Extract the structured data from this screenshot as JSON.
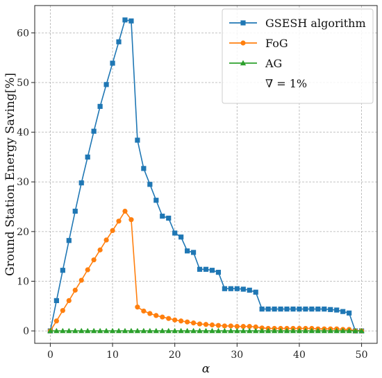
{
  "chart_data": {
    "type": "line",
    "xlabel": "α",
    "ylabel": "Ground Station Energy Saving[%]",
    "xlim": [
      -2.5,
      52.5
    ],
    "ylim": [
      -2.5,
      65.5
    ],
    "xticks": [
      0,
      10,
      20,
      30,
      40,
      50
    ],
    "yticks": [
      0,
      10,
      20,
      30,
      40,
      50,
      60
    ],
    "grid": true,
    "legend_position": "top-right",
    "legend_note": "∇ = 1%",
    "x": [
      0,
      1,
      2,
      3,
      4,
      5,
      6,
      7,
      8,
      9,
      10,
      11,
      12,
      13,
      14,
      15,
      16,
      17,
      18,
      19,
      20,
      21,
      22,
      23,
      24,
      25,
      26,
      27,
      28,
      29,
      30,
      31,
      32,
      33,
      34,
      35,
      36,
      37,
      38,
      39,
      40,
      41,
      42,
      43,
      44,
      45,
      46,
      47,
      48,
      49,
      50
    ],
    "series": [
      {
        "name": "GSESH algorithm",
        "color": "#1f77b4",
        "marker": "square",
        "values": [
          0,
          6.1,
          12.2,
          18.2,
          24.1,
          29.8,
          35.0,
          40.2,
          45.2,
          49.6,
          53.9,
          58.2,
          62.6,
          62.4,
          38.4,
          32.7,
          29.5,
          26.3,
          23.1,
          22.7,
          19.7,
          18.9,
          16.1,
          15.8,
          12.4,
          12.4,
          12.2,
          11.8,
          8.5,
          8.5,
          8.5,
          8.4,
          8.2,
          7.8,
          4.4,
          4.4,
          4.4,
          4.4,
          4.4,
          4.4,
          4.4,
          4.4,
          4.4,
          4.4,
          4.4,
          4.3,
          4.2,
          3.9,
          3.6,
          0,
          0
        ]
      },
      {
        "name": "FoG",
        "color": "#ff7f0e",
        "marker": "circle",
        "values": [
          0,
          2.0,
          4.1,
          6.1,
          8.2,
          10.2,
          12.3,
          14.3,
          16.3,
          18.3,
          20.2,
          22.1,
          24.1,
          22.4,
          4.8,
          4.0,
          3.5,
          3.1,
          2.8,
          2.5,
          2.2,
          2.0,
          1.8,
          1.6,
          1.4,
          1.3,
          1.2,
          1.1,
          1.0,
          1.0,
          0.9,
          0.9,
          0.9,
          0.8,
          0.6,
          0.5,
          0.5,
          0.5,
          0.5,
          0.5,
          0.5,
          0.5,
          0.5,
          0.4,
          0.4,
          0.4,
          0.4,
          0.3,
          0.3,
          0,
          0
        ]
      },
      {
        "name": "AG",
        "color": "#2ca02c",
        "marker": "triangle",
        "values": [
          0,
          0,
          0,
          0,
          0,
          0,
          0,
          0,
          0,
          0,
          0,
          0,
          0,
          0,
          0,
          0,
          0,
          0,
          0,
          0,
          0,
          0,
          0,
          0,
          0,
          0,
          0,
          0,
          0,
          0,
          0,
          0,
          0,
          0,
          0,
          0,
          0,
          0,
          0,
          0,
          0,
          0,
          0,
          0,
          0,
          0,
          0,
          0,
          0,
          0,
          0
        ]
      }
    ]
  }
}
